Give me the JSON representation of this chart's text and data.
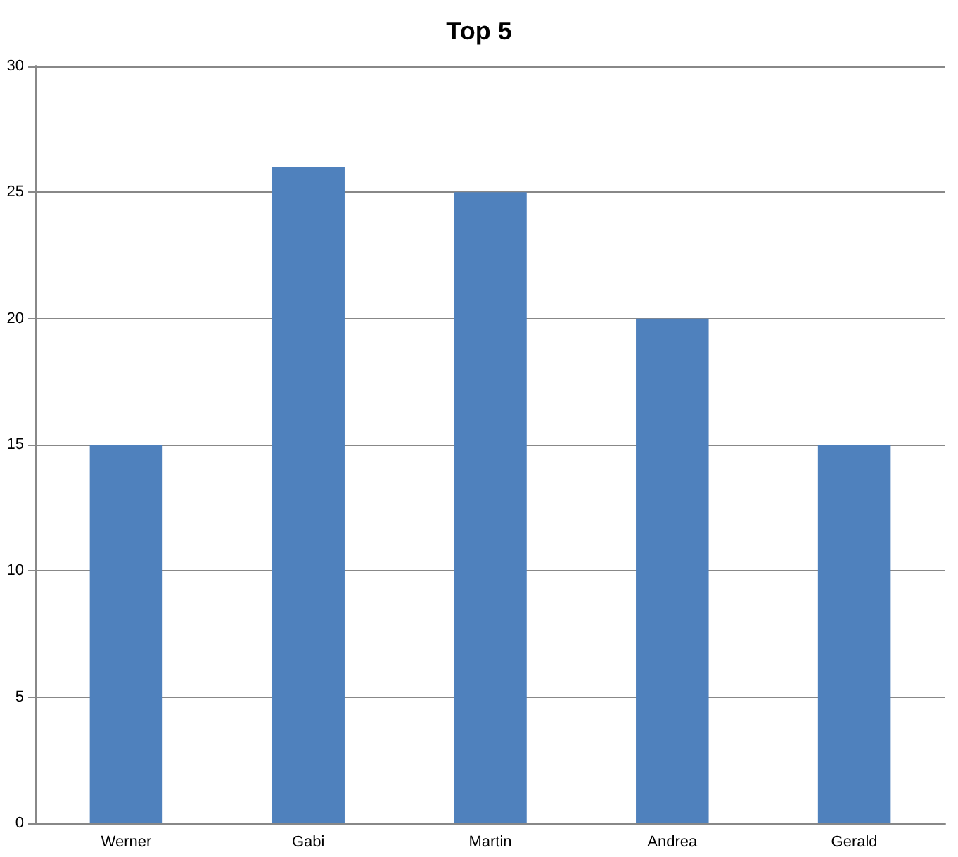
{
  "chart_data": {
    "type": "bar",
    "title": "Top 5",
    "categories": [
      "Werner",
      "Gabi",
      "Martin",
      "Andrea",
      "Gerald"
    ],
    "values": [
      15,
      26,
      25,
      20,
      15
    ],
    "color": "#4f81bd",
    "ylim": [
      0,
      30
    ],
    "yticks": [
      0,
      5,
      10,
      15,
      20,
      25,
      30
    ],
    "grid": "y"
  }
}
